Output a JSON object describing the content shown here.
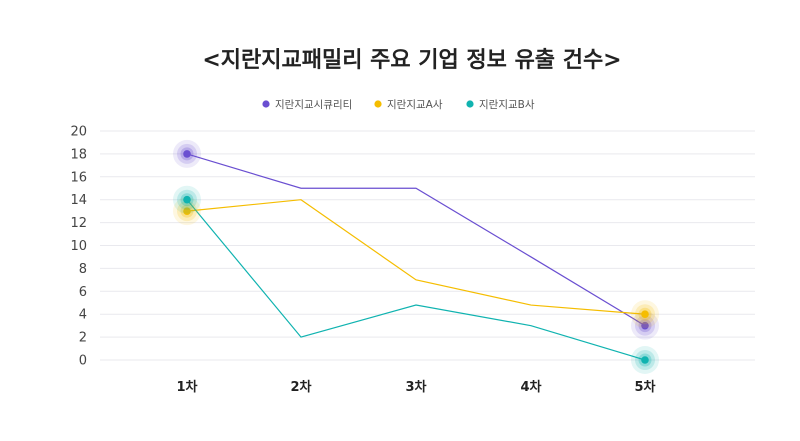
{
  "chart_data": {
    "type": "line",
    "title": "<지란지교패밀리 주요 기업 정보 유출 건수>",
    "categories": [
      "1차",
      "2차",
      "3차",
      "4차",
      "5차"
    ],
    "ylim": [
      0,
      20
    ],
    "yticks": [
      0,
      2,
      4,
      6,
      8,
      10,
      12,
      14,
      16,
      18,
      20
    ],
    "grid": true,
    "legend_position": "top-center",
    "series": [
      {
        "name": "지란지교시큐리티",
        "color": "#6a4fd1",
        "values": [
          18,
          15,
          15,
          9,
          3
        ],
        "highlighted_points": [
          0,
          4
        ]
      },
      {
        "name": "지란지교A사",
        "color": "#f5bd00",
        "values": [
          13,
          14,
          7,
          4.8,
          4
        ],
        "highlighted_points": [
          0,
          4
        ]
      },
      {
        "name": "지란지교B사",
        "color": "#10b3b0",
        "values": [
          14,
          2,
          4.8,
          3,
          0
        ],
        "highlighted_points": [
          0,
          4
        ]
      }
    ]
  }
}
